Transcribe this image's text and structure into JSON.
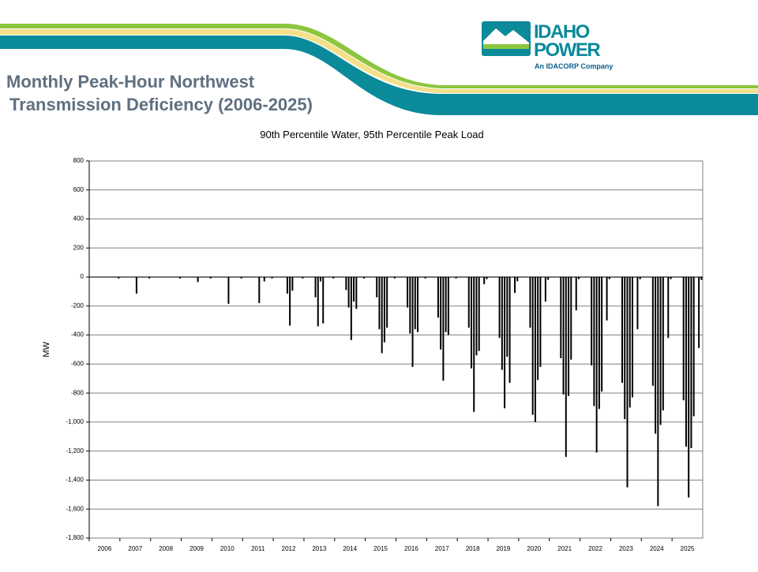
{
  "title_lines": [
    "Monthly Peak-Hour Northwest",
    "Transmission Deficiency (2006-2025)"
  ],
  "logo": {
    "line1": "IDAHO",
    "line2": "POWER",
    "tagline": "An IDACORP Company"
  },
  "chart_data": {
    "type": "bar",
    "title": "90th Percentile Water, 95th Percentile Peak Load",
    "y_label": "MW",
    "color": "#000000",
    "grid": true,
    "ylim": [
      -1800,
      800
    ],
    "yticks": [
      800,
      600,
      400,
      200,
      0,
      -200,
      -400,
      -600,
      -800,
      {
        "value": -1000,
        "label": "-1,000"
      },
      {
        "value": -1200,
        "label": "-1,200"
      },
      {
        "value": -1400,
        "label": "-1,400"
      },
      {
        "value": -1600,
        "label": "-1,600"
      },
      {
        "value": -1800,
        "label": "-1,800"
      }
    ],
    "categories": [
      "2006",
      null,
      null,
      null,
      null,
      null,
      null,
      null,
      null,
      null,
      null,
      null,
      "2007",
      null,
      null,
      null,
      null,
      null,
      null,
      null,
      null,
      null,
      null,
      null,
      "2008",
      null,
      null,
      null,
      null,
      null,
      null,
      null,
      null,
      null,
      null,
      null,
      "2009",
      null,
      null,
      null,
      null,
      null,
      null,
      null,
      null,
      null,
      null,
      null,
      "2010",
      null,
      null,
      null,
      null,
      null,
      null,
      null,
      null,
      null,
      null,
      null,
      "2011",
      null,
      null,
      null,
      null,
      null,
      null,
      null,
      null,
      null,
      null,
      null,
      "2012",
      null,
      null,
      null,
      null,
      null,
      null,
      null,
      null,
      null,
      null,
      null,
      "2013",
      null,
      null,
      null,
      null,
      null,
      null,
      null,
      null,
      null,
      null,
      null,
      "2014",
      null,
      null,
      null,
      null,
      null,
      null,
      null,
      null,
      null,
      null,
      null,
      "2015",
      null,
      null,
      null,
      null,
      null,
      null,
      null,
      null,
      null,
      null,
      null,
      "2016",
      null,
      null,
      null,
      null,
      null,
      null,
      null,
      null,
      null,
      null,
      null,
      "2017",
      null,
      null,
      null,
      null,
      null,
      null,
      null,
      null,
      null,
      null,
      null,
      "2018",
      null,
      null,
      null,
      null,
      null,
      null,
      null,
      null,
      null,
      null,
      null,
      "2019",
      null,
      null,
      null,
      null,
      null,
      null,
      null,
      null,
      null,
      null,
      null,
      "2020",
      null,
      null,
      null,
      null,
      null,
      null,
      null,
      null,
      null,
      null,
      null,
      "2021",
      null,
      null,
      null,
      null,
      null,
      null,
      null,
      null,
      null,
      null,
      null,
      "2022",
      null,
      null,
      null,
      null,
      null,
      null,
      null,
      null,
      null,
      null,
      null,
      "2023",
      null,
      null,
      null,
      null,
      null,
      null,
      null,
      null,
      null,
      null,
      null,
      "2024",
      null,
      null,
      null,
      null,
      null,
      null,
      null,
      null,
      null,
      null,
      null,
      "2025",
      null,
      null,
      null,
      null,
      null,
      null,
      null,
      null,
      null,
      null,
      null
    ],
    "values": [
      0,
      0,
      0,
      0,
      0,
      0,
      0,
      0,
      0,
      0,
      0,
      -10,
      0,
      0,
      0,
      0,
      0,
      0,
      -115,
      0,
      0,
      0,
      0,
      -10,
      0,
      0,
      0,
      0,
      0,
      0,
      0,
      0,
      0,
      0,
      0,
      -10,
      0,
      0,
      0,
      0,
      0,
      0,
      -35,
      0,
      0,
      0,
      0,
      -10,
      0,
      0,
      0,
      0,
      0,
      0,
      -185,
      0,
      0,
      0,
      0,
      -10,
      0,
      0,
      0,
      0,
      0,
      0,
      -180,
      0,
      -30,
      0,
      0,
      -10,
      0,
      0,
      0,
      0,
      0,
      -115,
      -335,
      -95,
      0,
      0,
      0,
      -10,
      0,
      0,
      0,
      0,
      -140,
      -340,
      -30,
      -320,
      0,
      0,
      0,
      -10,
      0,
      0,
      0,
      0,
      -90,
      -210,
      -435,
      -170,
      -220,
      0,
      0,
      -10,
      0,
      0,
      0,
      0,
      -140,
      -360,
      -525,
      -450,
      -350,
      0,
      0,
      -10,
      0,
      0,
      0,
      0,
      -210,
      -390,
      -620,
      -360,
      -380,
      0,
      0,
      -10,
      0,
      0,
      0,
      0,
      -280,
      -500,
      -715,
      -380,
      -400,
      0,
      0,
      -10,
      0,
      0,
      0,
      0,
      -350,
      -630,
      -930,
      -540,
      -510,
      0,
      -50,
      -15,
      0,
      0,
      0,
      0,
      -420,
      -640,
      -905,
      -550,
      -730,
      0,
      -110,
      -30,
      0,
      0,
      0,
      0,
      -350,
      -950,
      -1000,
      -710,
      -620,
      0,
      -170,
      -20,
      0,
      0,
      0,
      0,
      -560,
      -810,
      -1240,
      -820,
      -570,
      0,
      -230,
      -15,
      0,
      0,
      0,
      0,
      -610,
      -890,
      -1210,
      -910,
      -790,
      0,
      -300,
      -15,
      0,
      0,
      0,
      0,
      -730,
      -980,
      -1450,
      -900,
      -830,
      0,
      -360,
      -15,
      0,
      0,
      0,
      0,
      -750,
      -1080,
      -1580,
      -1020,
      -920,
      0,
      -420,
      -15,
      0,
      0,
      0,
      0,
      -850,
      -1170,
      -1520,
      -1180,
      -960,
      0,
      -490,
      -20
    ]
  }
}
